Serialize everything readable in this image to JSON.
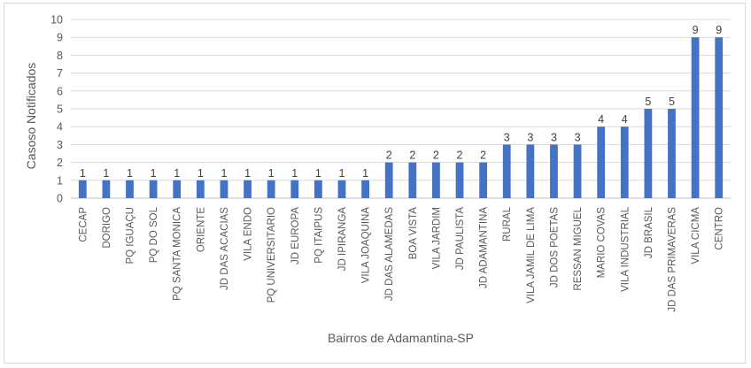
{
  "chart_data": {
    "type": "bar",
    "title": "",
    "xlabel": "Bairros de Adamantina-SP",
    "ylabel": "Casoso Notificados",
    "ylim": [
      0,
      10
    ],
    "yticks": [
      0,
      1,
      2,
      3,
      4,
      5,
      6,
      7,
      8,
      9,
      10
    ],
    "grid": true,
    "legend": "none",
    "bar_color": "#4472C4",
    "categories": [
      "CECAP",
      "DORIGO",
      "PQ IGUAÇU",
      "PQ DO SOL",
      "PQ SANTA MONICA",
      "ORIENTE",
      "JD DAS ACACIAS",
      "VILA ENDO",
      "PQ UNIVERSITARIO",
      "JD EUROPA",
      "PQ ITAIPUS",
      "JD IPIRANGA",
      "VILA JOAQUINA",
      "JD DAS ALAMEDAS",
      "BOA VISTA",
      "VILA JARDIM",
      "JD PAULISTA",
      "JD ADAMANTINA",
      "RURAL",
      "VILA JAMIL DE LIMA",
      "JD DOS POETAS",
      "RESSAN MIGUEL",
      "MARIO COVAS",
      "VILA INDUSTRIAL",
      "JD BRASIL",
      "JD DAS PRIMAVERAS",
      "VILA CICMA",
      "CENTRO"
    ],
    "values": [
      1,
      1,
      1,
      1,
      1,
      1,
      1,
      1,
      1,
      1,
      1,
      1,
      1,
      2,
      2,
      2,
      2,
      2,
      3,
      3,
      3,
      3,
      4,
      4,
      5,
      5,
      9,
      9
    ]
  }
}
